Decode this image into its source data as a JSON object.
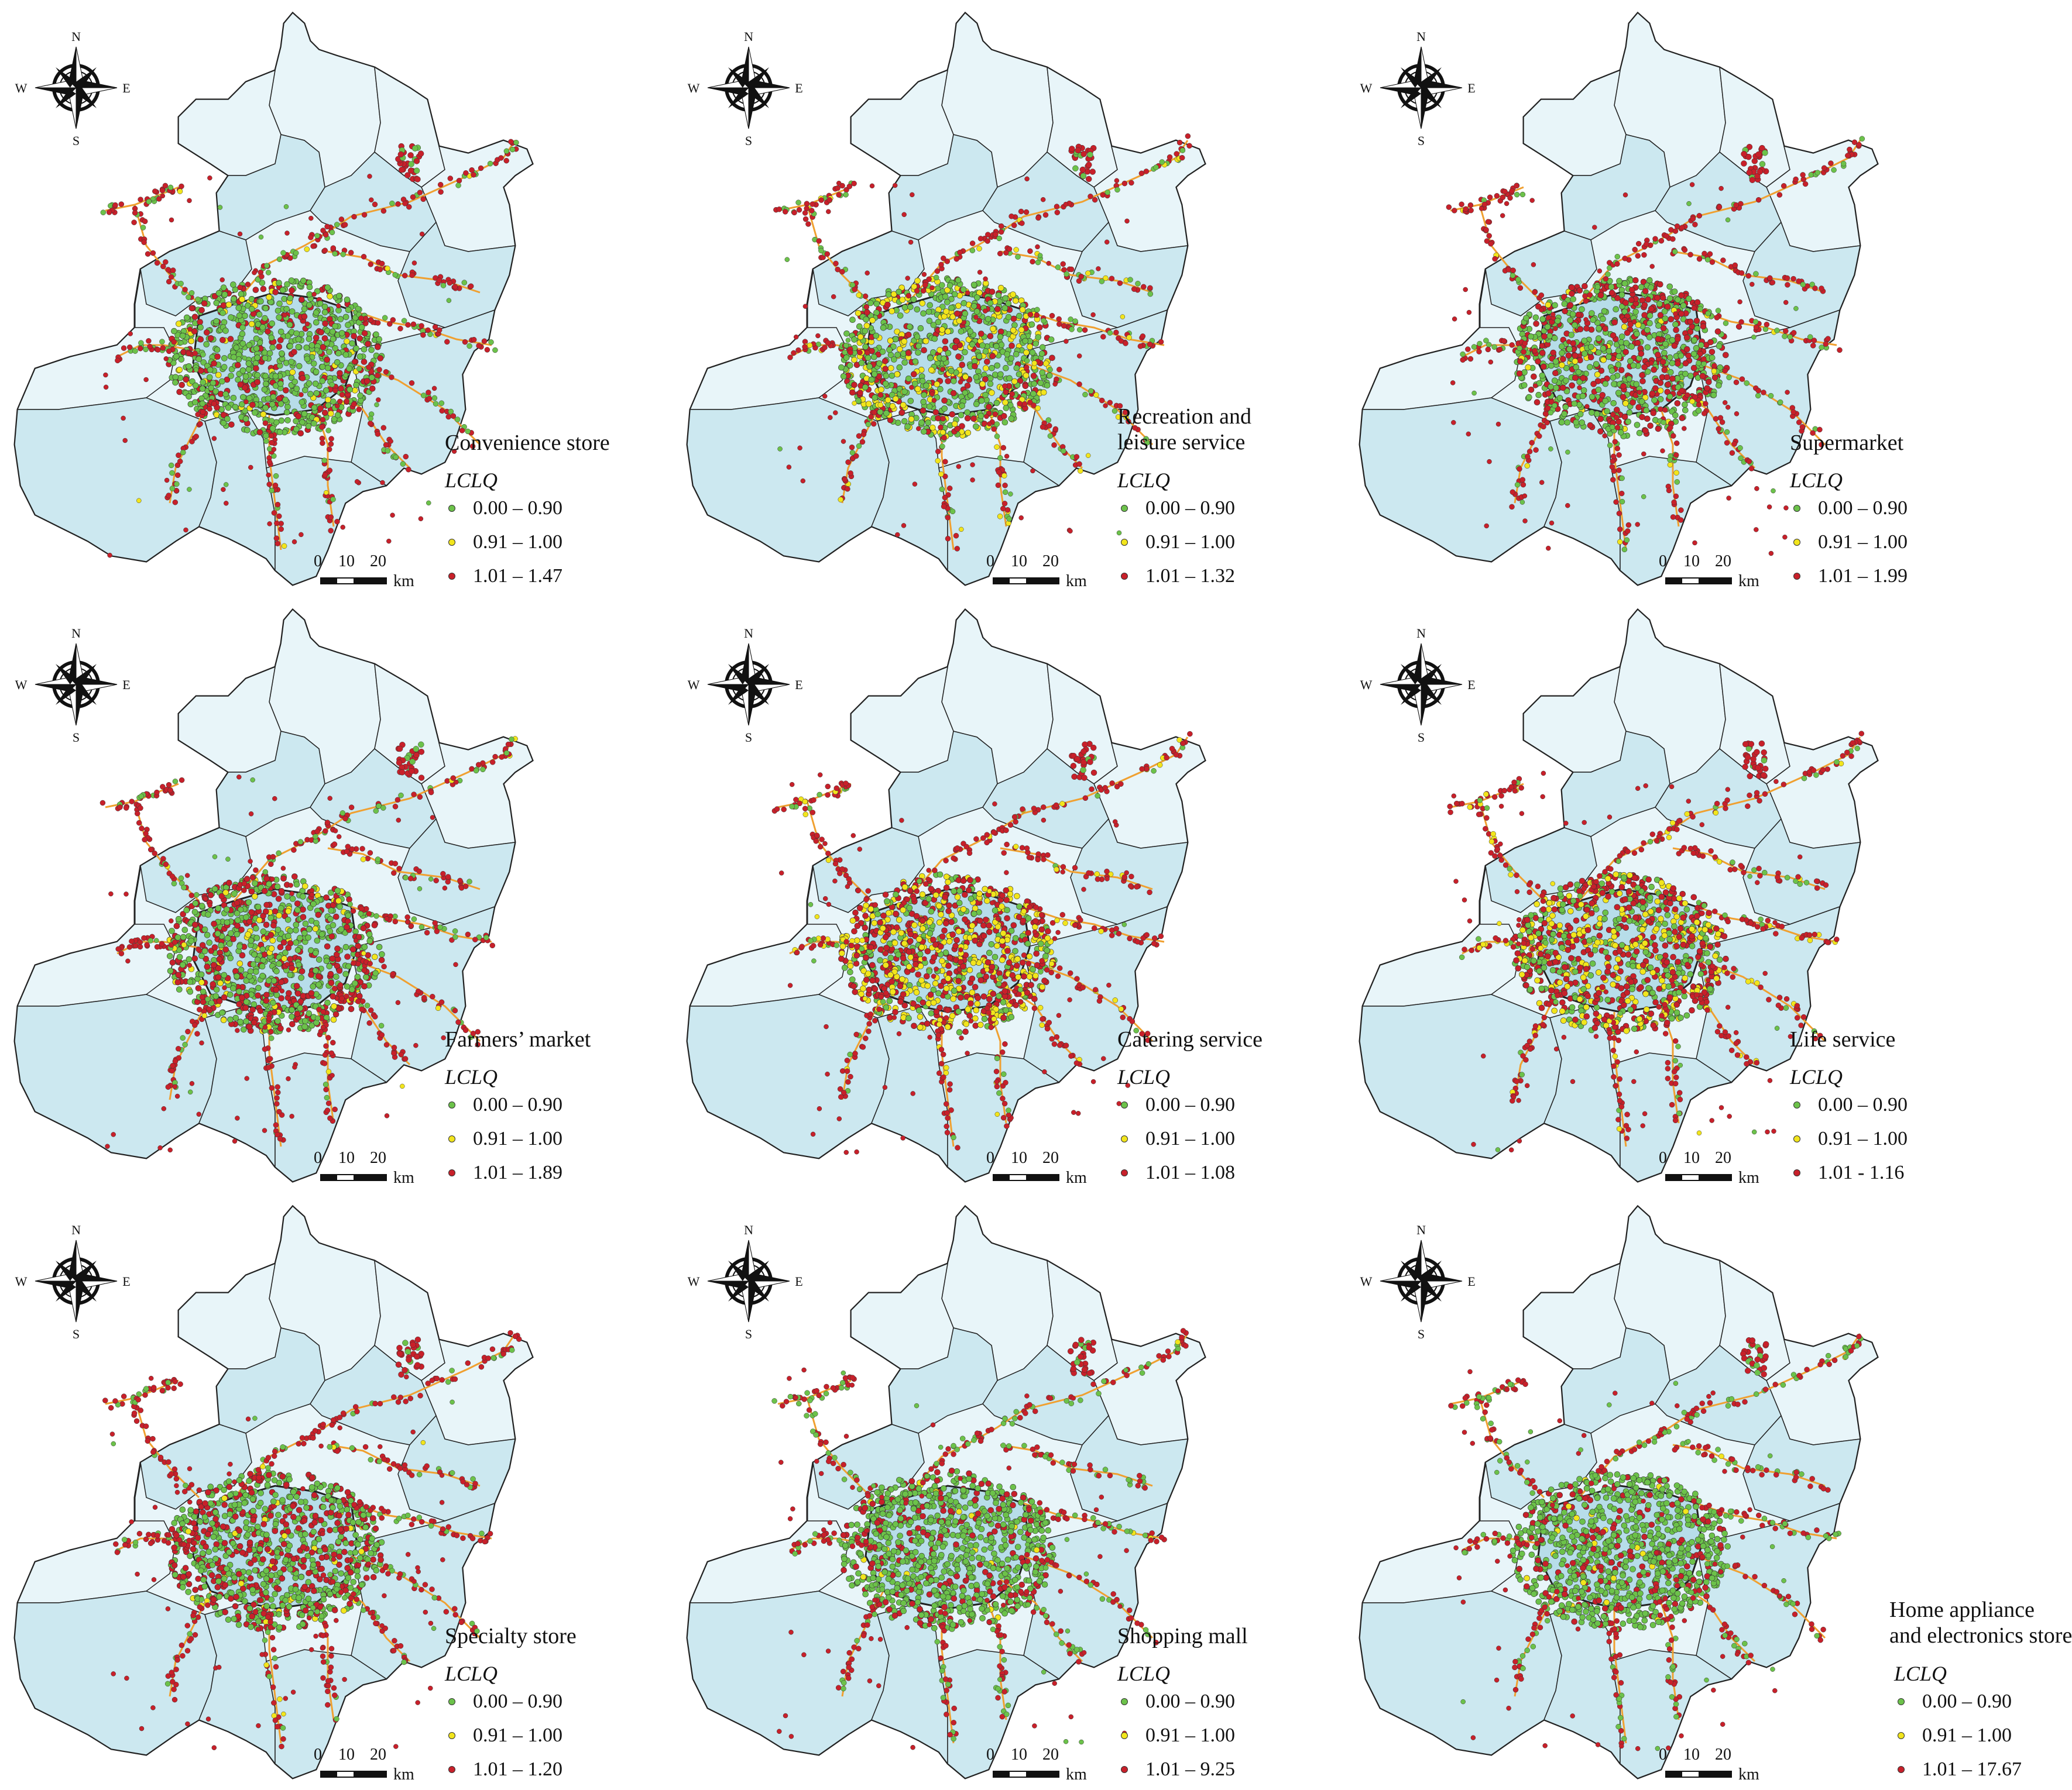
{
  "compass": {
    "n": "N",
    "s": "S",
    "e": "E",
    "w": "W"
  },
  "legend_heading": "LCLQ",
  "scale": {
    "labels": [
      "0",
      "10",
      "20"
    ],
    "unit": "km"
  },
  "colors": {
    "low": "#6cc24a",
    "mid": "#f2e51c",
    "high": "#c8202a",
    "inner_district": "#cce8f0",
    "outer_district": "#e8f5f9",
    "road": "#f0a030",
    "boundary": "#222222"
  },
  "panels": [
    {
      "title": "Convenience store",
      "classes": [
        "0.00 – 0.90",
        "0.91 – 1.00",
        "1.01 – 1.47"
      ]
    },
    {
      "title": "Recreation and\nleisure service",
      "classes": [
        "0.00 – 0.90",
        "0.91 – 1.00",
        "1.01 – 1.32"
      ]
    },
    {
      "title": "Supermarket",
      "classes": [
        "0.00 – 0.90",
        "0.91 – 1.00",
        "1.01 – 1.99"
      ]
    },
    {
      "title": "Farmers’ market",
      "classes": [
        "0.00 – 0.90",
        "0.91 – 1.00",
        "1.01 – 1.89"
      ]
    },
    {
      "title": "Catering service",
      "classes": [
        "0.00 – 0.90",
        "0.91 – 1.00",
        "1.01 – 1.08"
      ]
    },
    {
      "title": "Life service",
      "classes": [
        "0.00 – 0.90",
        "0.91 – 1.00",
        "1.01 - 1.16"
      ]
    },
    {
      "title": "Specialty store",
      "classes": [
        "0.00 – 0.90",
        "0.91 – 1.00",
        "1.01 – 1.20"
      ]
    },
    {
      "title": "Shopping mall",
      "classes": [
        "0.00 – 0.90",
        "0.91 – 1.00",
        "1.01 – 9.25"
      ]
    },
    {
      "title": "Home appliance\nand electronics store",
      "classes": [
        "0.00 – 0.90",
        "0.91 – 1.00",
        "1.01 – 17.67"
      ]
    }
  ]
}
